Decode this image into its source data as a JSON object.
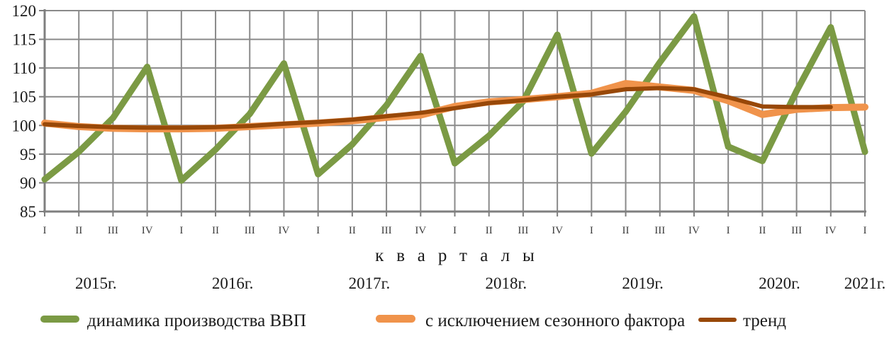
{
  "chart_data": {
    "type": "line",
    "title": "",
    "xlabel": "кварталы",
    "ylabel": "",
    "grid": true,
    "legend_position": "bottom",
    "y_axis": {
      "min": 85,
      "max": 120,
      "step": 5,
      "ticks": [
        120,
        115,
        110,
        105,
        100,
        95,
        90,
        85
      ]
    },
    "x_axis": {
      "title": "кварталы",
      "quarter_labels": [
        "I",
        "II",
        "III",
        "IV",
        "I",
        "II",
        "III",
        "IV",
        "I",
        "II",
        "III",
        "IV",
        "I",
        "II",
        "III",
        "IV",
        "I",
        "II",
        "III",
        "IV",
        "I",
        "II",
        "III",
        "IV",
        "I"
      ],
      "years": [
        {
          "label": "2015г.",
          "quarters": 4
        },
        {
          "label": "2016г.",
          "quarters": 4
        },
        {
          "label": "2017г.",
          "quarters": 4
        },
        {
          "label": "2018г.",
          "quarters": 4
        },
        {
          "label": "2019г.",
          "quarters": 4
        },
        {
          "label": "2020г.",
          "quarters": 4
        },
        {
          "label": "2021г.",
          "quarters": 1
        }
      ]
    },
    "series": [
      {
        "name": "динамика производства ВВП",
        "color": "#7b9a44",
        "line_width": 9,
        "values": [
          90.6,
          95.4,
          101.3,
          110.2,
          90.4,
          95.8,
          102.0,
          110.8,
          91.5,
          96.7,
          103.5,
          112.1,
          93.4,
          98.2,
          104.2,
          115.8,
          95.1,
          102.4,
          111.0,
          119.0,
          96.3,
          93.8,
          106.0,
          117.1,
          95.4
        ]
      },
      {
        "name": "с исключением сезонного фактора",
        "color": "#f0934b",
        "line_width": 10,
        "values": [
          100.4,
          99.8,
          99.5,
          99.4,
          99.4,
          99.5,
          99.8,
          100.1,
          100.4,
          100.8,
          101.4,
          101.8,
          103.3,
          104.1,
          104.5,
          105.0,
          105.6,
          107.3,
          106.7,
          106.1,
          104.3,
          101.9,
          102.8,
          103.1,
          103.2
        ]
      },
      {
        "name": "тренд",
        "color": "#984808",
        "line_width": 6,
        "values": [
          100.2,
          99.9,
          99.7,
          99.6,
          99.6,
          99.7,
          99.9,
          100.3,
          100.6,
          101.0,
          101.6,
          102.2,
          103.0,
          103.9,
          104.4,
          105.0,
          105.4,
          106.3,
          106.5,
          106.3,
          104.9,
          103.3,
          103.2,
          103.2
        ]
      }
    ],
    "grid_color": "#8a8a8a",
    "axis_color": "#7f7f7f",
    "tick_label_color": "#1a1a1a",
    "quarter_label_color": "#3d3d3d"
  },
  "legend": {
    "items": [
      {
        "label": "динамика производства ВВП",
        "color": "#7b9a44"
      },
      {
        "label": "с исключением сезонного фактора",
        "color": "#f0934b"
      },
      {
        "label": "тренд",
        "color": "#984808"
      }
    ]
  }
}
